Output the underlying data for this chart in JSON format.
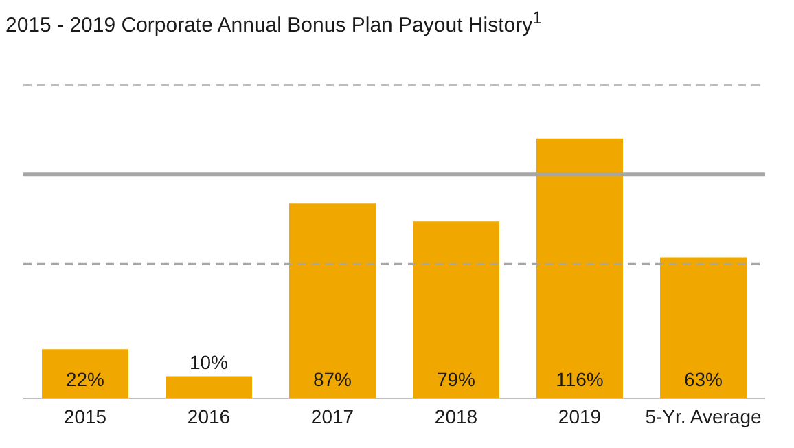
{
  "chart_data": {
    "type": "bar",
    "title": "2015 - 2019 Corporate Annual Bonus Plan Payout History$^{1}$",
    "categories": [
      "2015",
      "2016",
      "2017",
      "2018",
      "2019",
      "5-Yr. Average"
    ],
    "values": [
      22,
      10,
      87,
      79,
      116,
      63
    ],
    "value_labels": [
      "22%",
      "10%",
      "87%",
      "79%",
      "116%",
      "63%"
    ],
    "color": "#f0a800",
    "ref_lines": [
      {
        "axis": "y",
        "value": 140,
        "color": "#bfbfbf",
        "line_style": "dashed"
      },
      {
        "axis": "y",
        "value": 100,
        "color": "#a6a6a6",
        "line_style": "solid"
      },
      {
        "axis": "y",
        "value": 60,
        "color": "#a6a6a6",
        "line_style": "dashed"
      }
    ],
    "grid": false,
    "legend": false
  }
}
